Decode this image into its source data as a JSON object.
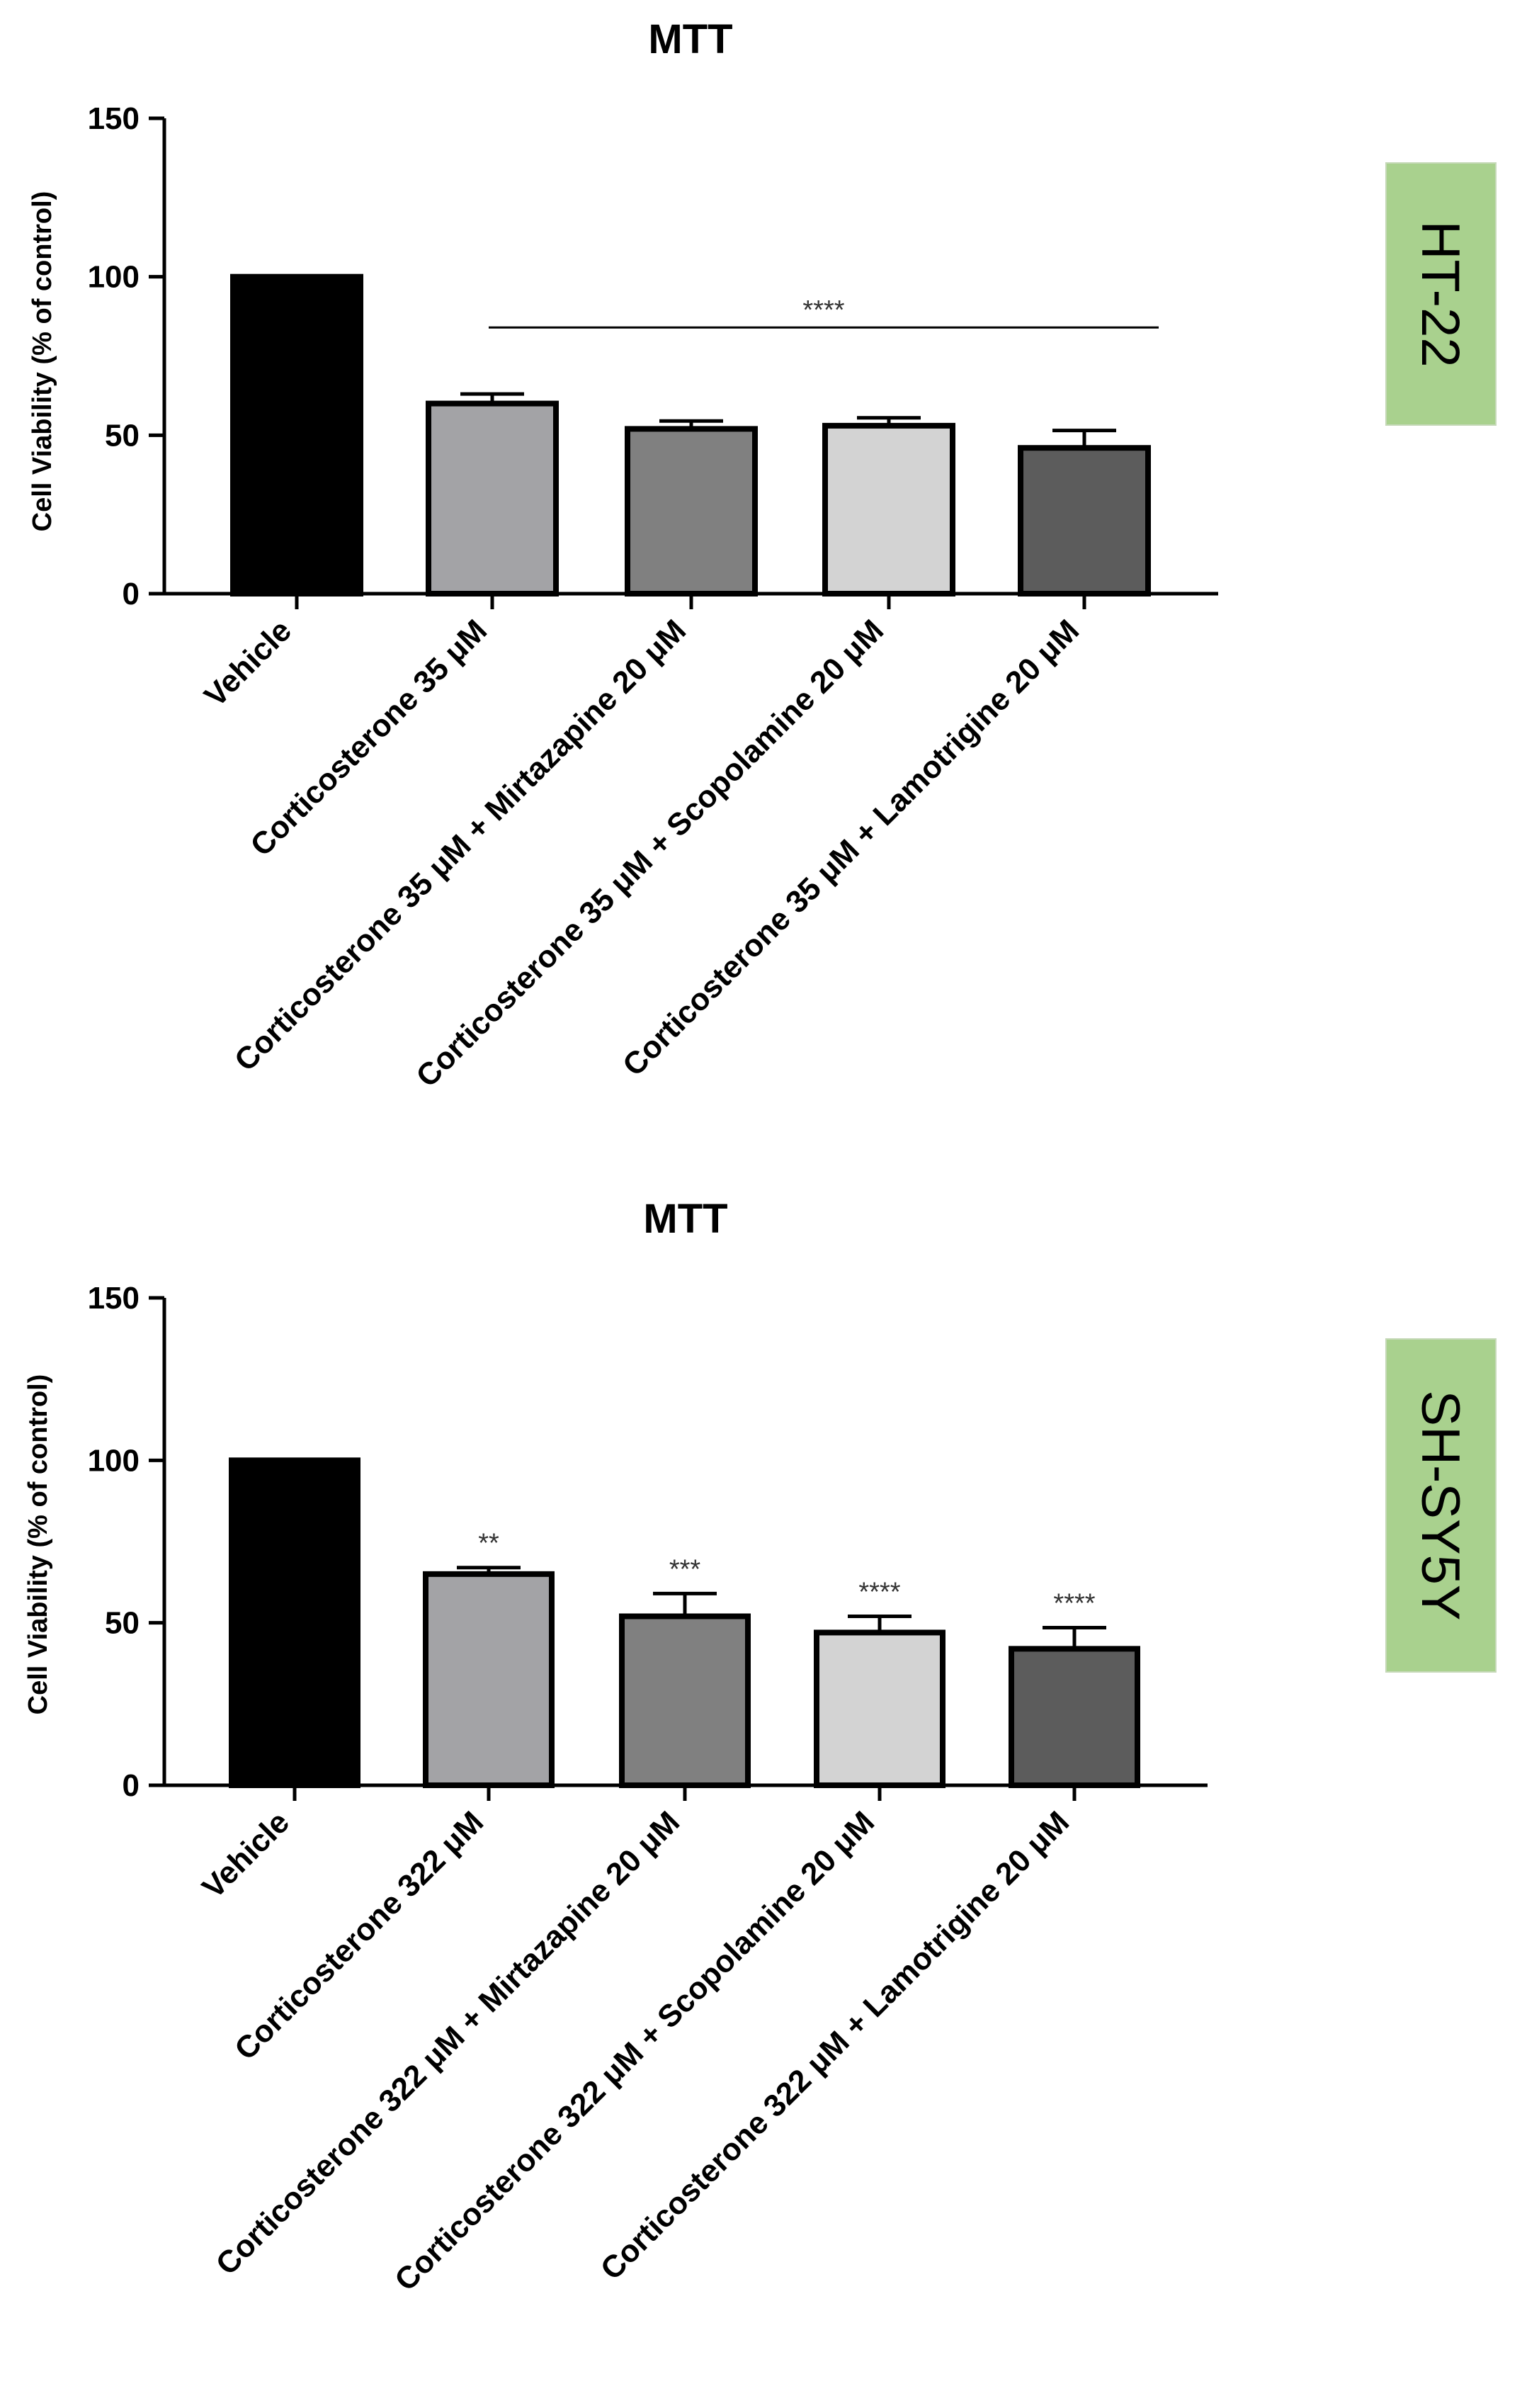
{
  "chart_data": [
    {
      "type": "bar",
      "title": "MTT",
      "ylabel": "Cell Viability (% of control)",
      "xlabel": "",
      "ylim": [
        0,
        150
      ],
      "yticks": [
        0,
        50,
        100,
        150
      ],
      "categories": [
        "Vehicle",
        "Corticosterone 35 μM",
        "Corticosterone 35 μM + Mirtazapine 20 μM",
        "Corticosterone 35 μM + Scopolamine 20 μM",
        "Corticosterone 35 μM + Lamotrigine 20 μM"
      ],
      "values": [
        100,
        60,
        52,
        53,
        46
      ],
      "errors": [
        0,
        3,
        2.5,
        2.5,
        5.5
      ],
      "colors": [
        "#000000",
        "#a3a3a6",
        "#808080",
        "#d3d3d3",
        "#5c5c5c"
      ],
      "significance": {
        "bracket_label": "****",
        "bracket_from": 1,
        "bracket_to": 4,
        "bracket_y": 84,
        "bar_labels": [
          "",
          "",
          "",
          "",
          ""
        ]
      },
      "cell_line": "HT-22"
    },
    {
      "type": "bar",
      "title": "MTT",
      "ylabel": "Cell Viability (% of control)",
      "xlabel": "",
      "ylim": [
        0,
        150
      ],
      "yticks": [
        0,
        50,
        100,
        150
      ],
      "categories": [
        "Vehicle",
        "Corticosterone 322 μM",
        "Corticosterone 322 μM + Mirtazapine 20 μM",
        "Corticosterone 322 μM + Scopolamine 20 μM",
        "Corticosterone 322 μM + Lamotrigine 20 μM"
      ],
      "values": [
        100,
        65,
        52,
        47,
        42
      ],
      "errors": [
        0,
        2,
        7,
        5,
        6.5
      ],
      "colors": [
        "#000000",
        "#a3a3a6",
        "#808080",
        "#d3d3d3",
        "#5c5c5c"
      ],
      "significance": {
        "bracket_label": "",
        "bar_labels": [
          "",
          "**",
          "***",
          "****",
          "****"
        ]
      },
      "cell_line": "SH-SY5Y"
    }
  ],
  "badge_color": "#a9d18e"
}
